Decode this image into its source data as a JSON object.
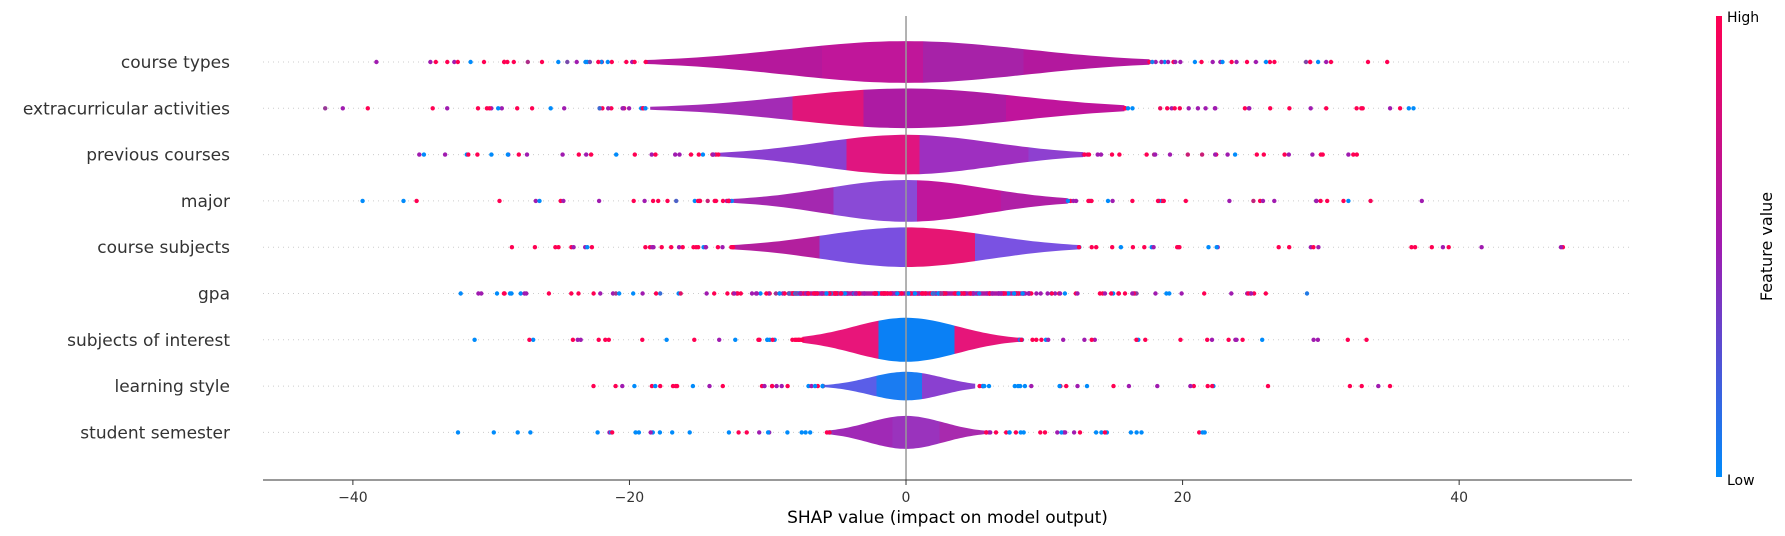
{
  "chart_data": {
    "type": "violin",
    "xlabel": "SHAP value (impact on model output)",
    "xlim": [
      -46.5,
      52.5
    ],
    "xticks": [
      -40,
      -20,
      0,
      20,
      40
    ],
    "xtick_labels": [
      "−40",
      "−20",
      "0",
      "20",
      "40"
    ],
    "colorbar": {
      "high_label": "High",
      "low_label": "Low",
      "title": "Feature value",
      "high_color": "#ff0052",
      "low_color": "#008bfb"
    },
    "colors": {
      "low": "#008bfb",
      "high": "#ff0052",
      "mid": "#a01bb0",
      "zero_line": "#999999"
    },
    "features": [
      {
        "name": "course types",
        "min": -38.3,
        "max": 34.8,
        "body": [
          -18.8,
          17.6
        ],
        "width": 0.95,
        "colors": [
          [
            "#b5189c",
            0.35
          ],
          [
            "#c0169a",
            0.2
          ],
          [
            "#a722a8",
            0.2
          ],
          [
            "#b3189e",
            0.25
          ]
        ]
      },
      {
        "name": "extracurricular activities",
        "min": -42.0,
        "max": 36.7,
        "body": [
          -18.5,
          15.8
        ],
        "width": 0.9,
        "colors": [
          [
            "#a32bb5",
            0.3
          ],
          [
            "#e0157a",
            0.15
          ],
          [
            "#ad1ba3",
            0.3
          ],
          [
            "#c0149c",
            0.25
          ]
        ]
      },
      {
        "name": "previous courses",
        "min": -35.2,
        "max": 32.6,
        "body": [
          -13.5,
          12.8
        ],
        "width": 0.9,
        "colors": [
          [
            "#8a3fd0",
            0.35
          ],
          [
            "#e01580",
            0.2
          ],
          [
            "#9e2fc0",
            0.3
          ],
          [
            "#8e40d0",
            0.15
          ]
        ]
      },
      {
        "name": "major",
        "min": -39.3,
        "max": 37.3,
        "body": [
          -12.5,
          11.7
        ],
        "width": 0.95,
        "colors": [
          [
            "#a428b0",
            0.3
          ],
          [
            "#8a4ad6",
            0.25
          ],
          [
            "#c0169c",
            0.25
          ],
          [
            "#b01fa6",
            0.2
          ]
        ]
      },
      {
        "name": "course subjects",
        "min": -28.5,
        "max": 47.5,
        "body": [
          -12.5,
          12.5
        ],
        "width": 0.9,
        "colors": [
          [
            "#b31f9e",
            0.25
          ],
          [
            "#7a4fe0",
            0.25
          ],
          [
            "#e61573",
            0.2
          ],
          [
            "#7a52e2",
            0.3
          ]
        ]
      },
      {
        "name": "gpa",
        "min": -32.2,
        "max": 29.0,
        "body": [
          -8.5,
          8.5
        ],
        "width": 0.1,
        "colors": [
          [
            "#b0189e",
            1.0
          ]
        ]
      },
      {
        "name": "subjects of interest",
        "min": -31.2,
        "max": 33.3,
        "body": [
          -7.5,
          8.2
        ],
        "width": 1.0,
        "colors": [
          [
            "#e8157a",
            0.35
          ],
          [
            "#0a80f5",
            0.35
          ],
          [
            "#e6157a",
            0.3
          ]
        ]
      },
      {
        "name": "learning style",
        "min": -22.6,
        "max": 35.0,
        "body": [
          -6.0,
          5.0
        ],
        "width": 0.65,
        "colors": [
          [
            "#5a5ee8",
            0.35
          ],
          [
            "#1a7cf2",
            0.3
          ],
          [
            "#8a40d0",
            0.35
          ]
        ]
      },
      {
        "name": "student semester",
        "min": -32.4,
        "max": 21.6,
        "body": [
          -5.5,
          5.8
        ],
        "width": 0.75,
        "colors": [
          [
            "#a029b6",
            0.4
          ],
          [
            "#9a33bd",
            0.3
          ],
          [
            "#a82aae",
            0.3
          ]
        ]
      }
    ]
  }
}
